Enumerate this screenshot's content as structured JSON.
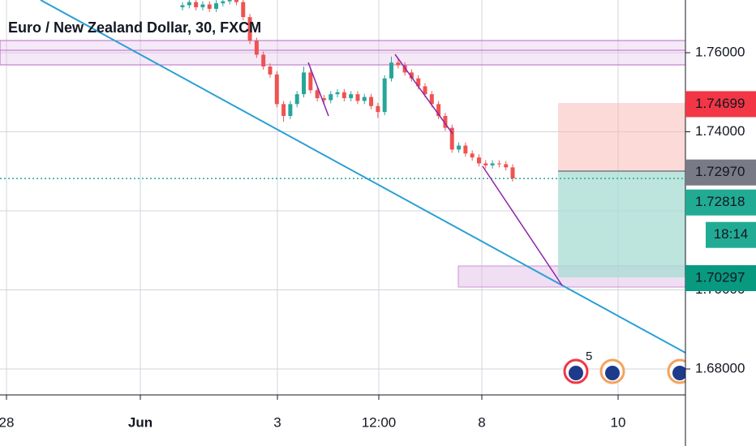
{
  "chart_data": {
    "type": "candlestick",
    "title": "Euro / New Zealand Dollar, 30, FXCM",
    "open": [
      1.7715,
      1.772,
      1.7728,
      1.7715,
      1.7722,
      1.7711,
      1.7725,
      1.773,
      1.7735,
      1.7728,
      1.769,
      1.763,
      1.7595,
      1.7565,
      1.7545,
      1.747,
      1.744,
      1.747,
      1.7495,
      1.755,
      1.7505,
      1.7485,
      1.748,
      1.7495,
      1.75,
      1.7485,
      1.7495,
      1.7478,
      1.7488,
      1.7465,
      1.745,
      1.7535,
      1.7575,
      1.7568,
      1.755,
      1.7535,
      1.7515,
      1.7495,
      1.747,
      1.744,
      1.741,
      1.7355,
      1.7365,
      1.7345,
      1.7335,
      1.732,
      1.7315,
      1.732,
      1.7318,
      1.731
    ],
    "high": [
      1.7728,
      1.7736,
      1.7736,
      1.773,
      1.773,
      1.7733,
      1.7738,
      1.7743,
      1.7743,
      1.7736,
      1.7698,
      1.7638,
      1.7603,
      1.7573,
      1.7553,
      1.7478,
      1.7478,
      1.7503,
      1.7565,
      1.7558,
      1.7513,
      1.7493,
      1.7503,
      1.7508,
      1.7508,
      1.7503,
      1.7503,
      1.7496,
      1.7496,
      1.7473,
      1.7543,
      1.759,
      1.7583,
      1.7576,
      1.7558,
      1.7543,
      1.7523,
      1.7503,
      1.7478,
      1.7448,
      1.7418,
      1.7373,
      1.7373,
      1.7353,
      1.7343,
      1.7328,
      1.7328,
      1.7328,
      1.7326,
      1.7318
    ],
    "low": [
      1.7707,
      1.7712,
      1.7707,
      1.7707,
      1.7703,
      1.7703,
      1.7717,
      1.7722,
      1.772,
      1.7682,
      1.7622,
      1.7587,
      1.7557,
      1.7537,
      1.7462,
      1.7425,
      1.7432,
      1.7462,
      1.7487,
      1.7497,
      1.7477,
      1.7472,
      1.7472,
      1.7487,
      1.7477,
      1.7477,
      1.747,
      1.747,
      1.7457,
      1.7435,
      1.7442,
      1.7527,
      1.756,
      1.7542,
      1.7527,
      1.7507,
      1.7487,
      1.7462,
      1.7432,
      1.7402,
      1.7347,
      1.7347,
      1.7337,
      1.7327,
      1.7312,
      1.7307,
      1.7307,
      1.731,
      1.7302,
      1.7274
    ],
    "close": [
      1.772,
      1.7728,
      1.7715,
      1.7722,
      1.7711,
      1.7725,
      1.773,
      1.7735,
      1.7728,
      1.769,
      1.763,
      1.7595,
      1.7565,
      1.7545,
      1.747,
      1.744,
      1.747,
      1.7495,
      1.755,
      1.7505,
      1.7485,
      1.748,
      1.7495,
      1.75,
      1.7485,
      1.7495,
      1.7478,
      1.7488,
      1.7465,
      1.745,
      1.7535,
      1.7575,
      1.7568,
      1.755,
      1.7535,
      1.7515,
      1.7495,
      1.747,
      1.744,
      1.741,
      1.7355,
      1.7365,
      1.7345,
      1.7335,
      1.732,
      1.7315,
      1.732,
      1.7318,
      1.731,
      1.72818
    ],
    "up_color": "#26a69a",
    "down_color": "#ef5350",
    "ylim": [
      1.67344,
      1.77333
    ],
    "yticks": [
      {
        "value": 1.76,
        "label": "1.76000"
      },
      {
        "value": 1.74,
        "label": "1.74000"
      },
      {
        "value": 1.72,
        "label": "1.72000"
      },
      {
        "value": 1.7,
        "label": "1.70000"
      },
      {
        "value": 1.68,
        "label": "1.68000"
      }
    ],
    "x_labels": [
      "28",
      "Jun",
      "3",
      "12:00",
      "8",
      "10"
    ],
    "grid": true,
    "price_labels": [
      {
        "value": 1.74699,
        "label": "1.74699",
        "color": "#f23645"
      },
      {
        "value": 1.7297,
        "label": "1.72970",
        "color": "#787b86"
      },
      {
        "value": 1.72818,
        "label": "1.72818",
        "color": "#22ab94"
      },
      {
        "value": 1.70297,
        "label": "1.70297",
        "color": "#089981"
      }
    ],
    "countdown": "18:14",
    "event_count": "5"
  }
}
